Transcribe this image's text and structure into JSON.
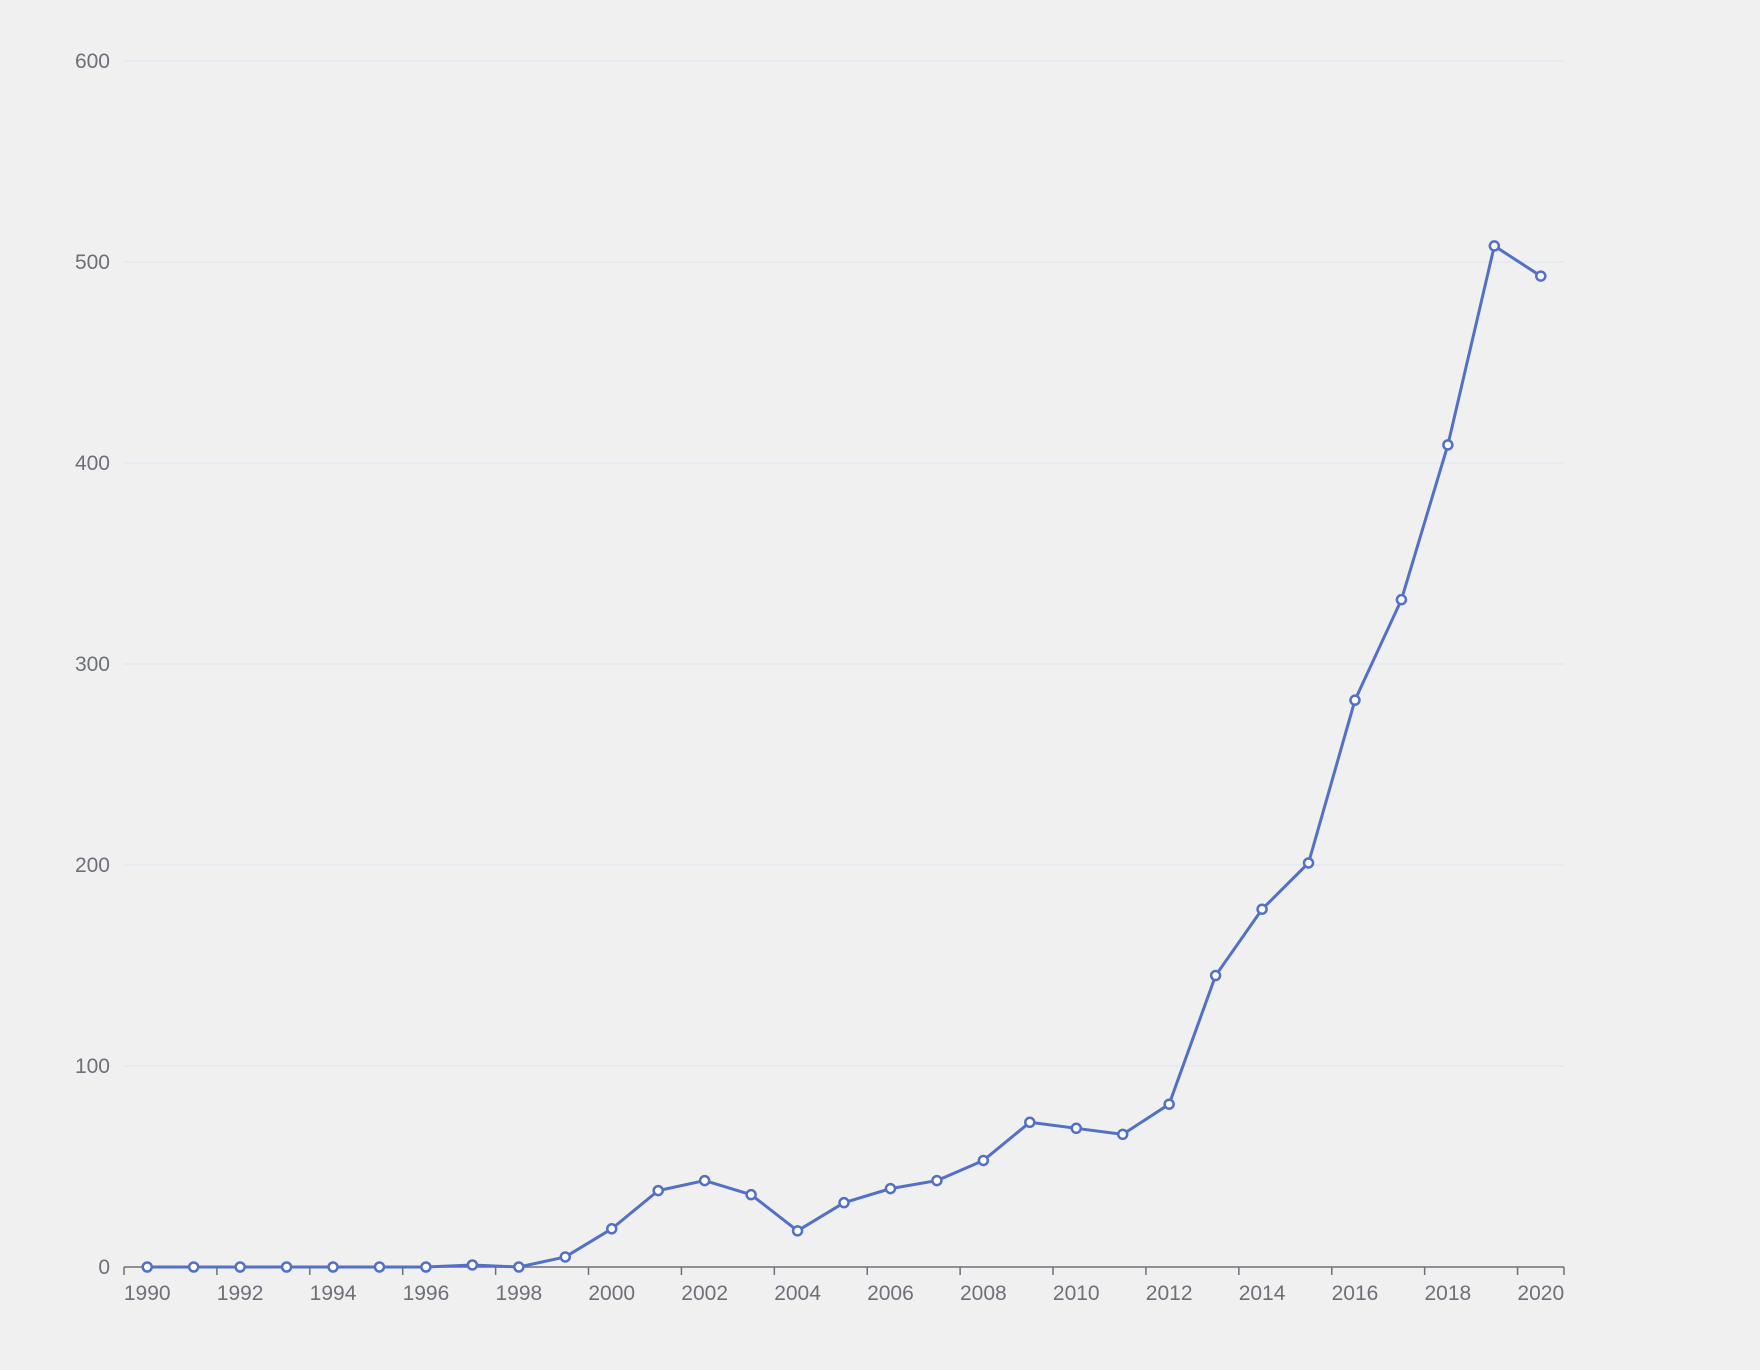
{
  "chart_data": {
    "type": "line",
    "title": "",
    "xlabel": "",
    "ylabel": "",
    "x": [
      1990,
      1991,
      1992,
      1993,
      1994,
      1995,
      1996,
      1997,
      1998,
      1999,
      2000,
      2001,
      2002,
      2003,
      2004,
      2005,
      2006,
      2007,
      2008,
      2009,
      2010,
      2011,
      2012,
      2013,
      2014,
      2015,
      2016,
      2017,
      2018,
      2019,
      2020
    ],
    "x_tick_labels": [
      "1990",
      "1992",
      "1994",
      "1996",
      "1998",
      "2000",
      "2002",
      "2004",
      "2006",
      "2008",
      "2010",
      "2012",
      "2014",
      "2016",
      "2018",
      "2020"
    ],
    "y_tick_labels": [
      "0",
      "100",
      "200",
      "300",
      "400",
      "500",
      "600"
    ],
    "ylim": [
      0,
      600
    ],
    "grid": true,
    "series": [
      {
        "values": [
          0,
          0,
          0,
          0,
          0,
          0,
          0,
          1,
          0,
          5,
          19,
          38,
          43,
          36,
          18,
          32,
          39,
          43,
          53,
          72,
          69,
          66,
          81,
          145,
          178,
          201,
          282,
          332,
          409,
          508,
          493
        ],
        "color": "#5470c6"
      }
    ]
  }
}
